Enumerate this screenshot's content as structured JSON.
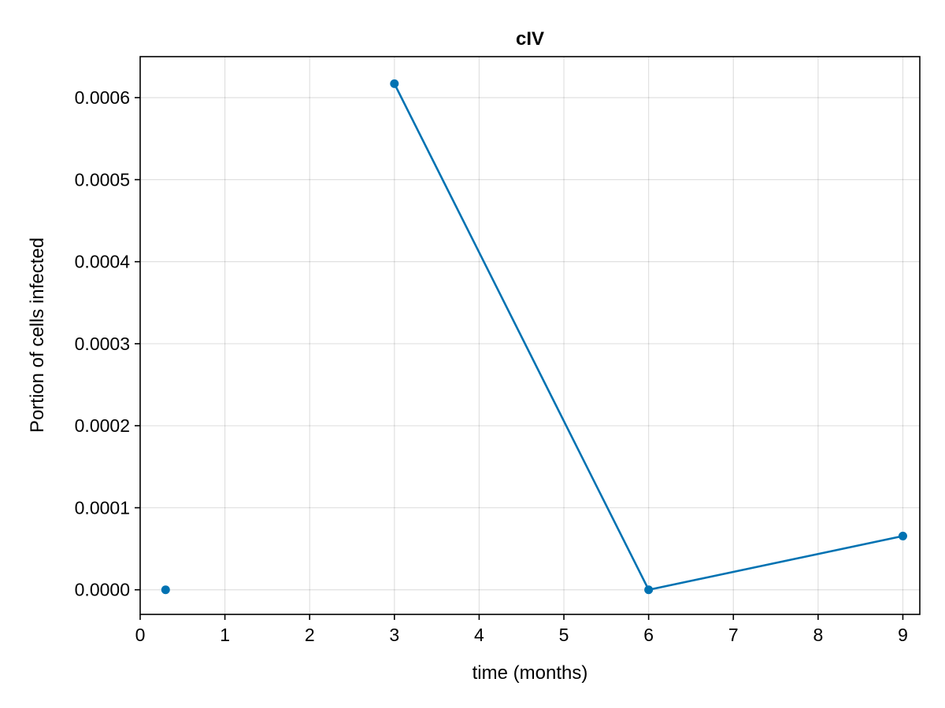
{
  "chart_data": {
    "type": "line",
    "title": "cIV",
    "xlabel": "time (months)",
    "ylabel": "Portion of cells infected",
    "xlim": [
      0,
      9.2
    ],
    "ylim": [
      -3e-05,
      0.00065
    ],
    "x_ticks": [
      0,
      1,
      2,
      3,
      4,
      5,
      6,
      7,
      8,
      9
    ],
    "x_tick_labels": [
      "0",
      "1",
      "2",
      "3",
      "4",
      "5",
      "6",
      "7",
      "8",
      "9"
    ],
    "y_ticks": [
      0,
      0.0001,
      0.0002,
      0.0003,
      0.0004,
      0.0005,
      0.0006
    ],
    "y_tick_labels": [
      "0.0000",
      "0.0001",
      "0.0002",
      "0.0003",
      "0.0004",
      "0.0005",
      "0.0006"
    ],
    "grid": true,
    "series": [
      {
        "color": "#0072b2",
        "points": [
          {
            "x": 0.3,
            "y": 0
          },
          {
            "x": 3,
            "y": 0.000617
          },
          {
            "x": 6,
            "y": 0
          },
          {
            "x": 9,
            "y": 6.55e-05
          }
        ],
        "connected_segments": [
          [
            1,
            2
          ],
          [
            2,
            3
          ]
        ]
      }
    ]
  }
}
